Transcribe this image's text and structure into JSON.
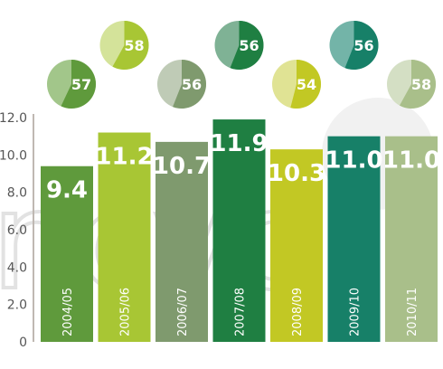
{
  "chart_data": {
    "type": "bar",
    "categories": [
      "2004/05",
      "2005/06",
      "2006/07",
      "2007/08",
      "2008/09",
      "2009/10",
      "2010/11"
    ],
    "values": [
      9.4,
      11.2,
      10.7,
      11.9,
      10.3,
      11.0,
      11.0
    ],
    "value_labels": [
      "9.4",
      "11.2",
      "10.7",
      "11.9",
      "10.3",
      "11.0",
      "11.0"
    ],
    "pie_values": [
      57,
      58,
      56,
      56,
      54,
      56,
      58
    ],
    "pie_labels": [
      "57",
      "58",
      "56",
      "56",
      "54",
      "56",
      "58"
    ],
    "y_ticks": [
      "0",
      "2.0",
      "4.0",
      "6.0",
      "8.0",
      "10.0",
      "12.0"
    ],
    "ylim": [
      0,
      12
    ],
    "bar_colors": [
      "#5f9a3c",
      "#a8c634",
      "#7f9a6e",
      "#1f7f42",
      "#c2c824",
      "#178068",
      "#a9bf8a"
    ],
    "pie_dark_colors": [
      "#5f9a3c",
      "#a8c634",
      "#7f9a6e",
      "#1f7f42",
      "#c2c824",
      "#178068",
      "#a9bf8a"
    ],
    "pie_light_colors": [
      "#a2c68a",
      "#d4e39a",
      "#bfcbb6",
      "#7fb295",
      "#e0e394",
      "#73b4a8",
      "#d4dfc4"
    ],
    "grid": false,
    "watermark": "ncvo"
  }
}
